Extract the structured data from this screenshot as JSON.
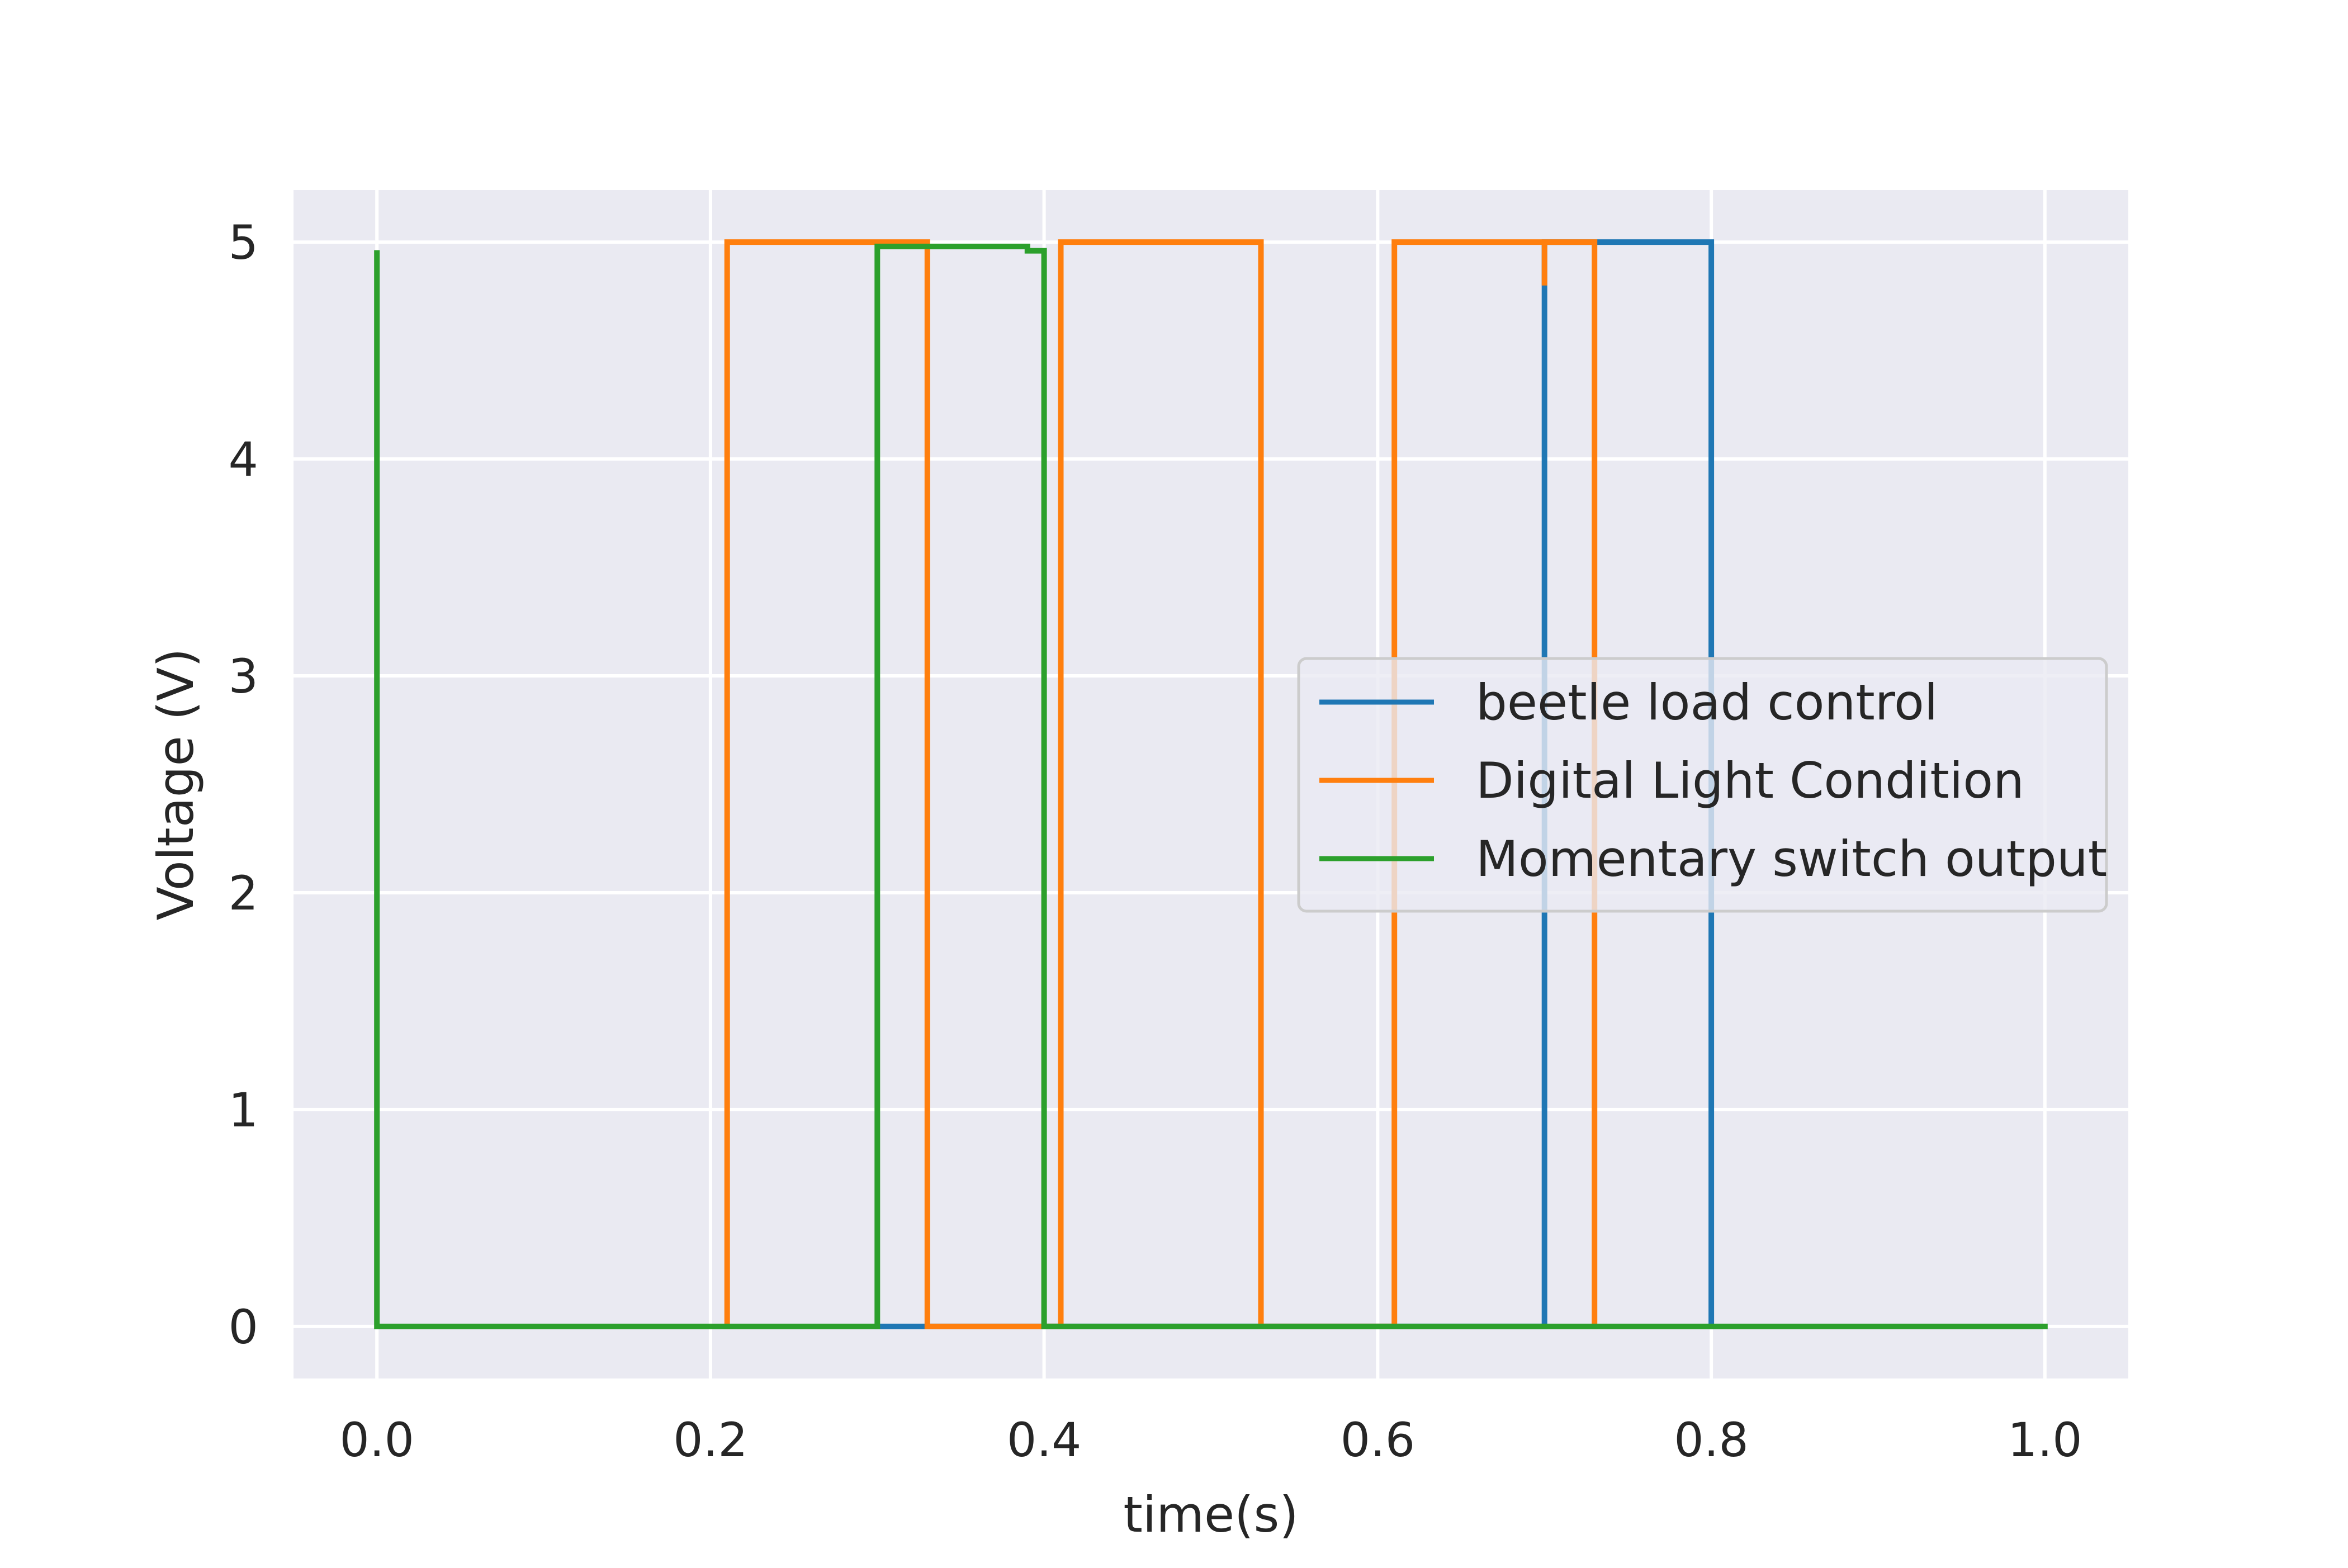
{
  "chart_data": {
    "type": "line",
    "title": "",
    "xlabel": "time(s)",
    "ylabel": "Voltage (V)",
    "xlim": [
      -0.05,
      1.05
    ],
    "ylim": [
      -0.24,
      5.24
    ],
    "x_ticks": [
      0.0,
      0.2,
      0.4,
      0.6,
      0.8,
      1.0
    ],
    "x_tick_labels": [
      "0.0",
      "0.2",
      "0.4",
      "0.6",
      "0.8",
      "1.0"
    ],
    "y_ticks": [
      0,
      1,
      2,
      3,
      4,
      5
    ],
    "y_tick_labels": [
      "0",
      "1",
      "2",
      "3",
      "4",
      "5"
    ],
    "grid": true,
    "background": "#eaeaf2",
    "legend_position": "center-right",
    "series": [
      {
        "name": "beetle load control",
        "color": "#1f77b4",
        "x": [
          0.3,
          0.33,
          0.33,
          0.7,
          0.7,
          0.7,
          0.8,
          0.8
        ],
        "y": [
          0,
          0,
          0,
          0,
          4.8,
          5,
          5,
          0
        ]
      },
      {
        "name": "Digital Light Condition",
        "color": "#ff7f0e",
        "x": [
          0.21,
          0.21,
          0.33,
          0.33,
          0.41,
          0.41,
          0.53,
          0.53,
          0.61,
          0.61,
          0.7,
          0.7,
          0.7,
          0.73,
          0.73
        ],
        "y": [
          0,
          5,
          5,
          0,
          0,
          5,
          5,
          0,
          0,
          5,
          5,
          4.8,
          5,
          5,
          0
        ]
      },
      {
        "name": "Momentary switch output",
        "color": "#2ca02c",
        "x": [
          0.0,
          0.0,
          0.3,
          0.3,
          0.39,
          0.39,
          0.4,
          0.4,
          1.0
        ],
        "y": [
          4.95,
          0,
          0,
          4.98,
          4.98,
          4.96,
          4.96,
          0,
          0
        ]
      }
    ]
  }
}
